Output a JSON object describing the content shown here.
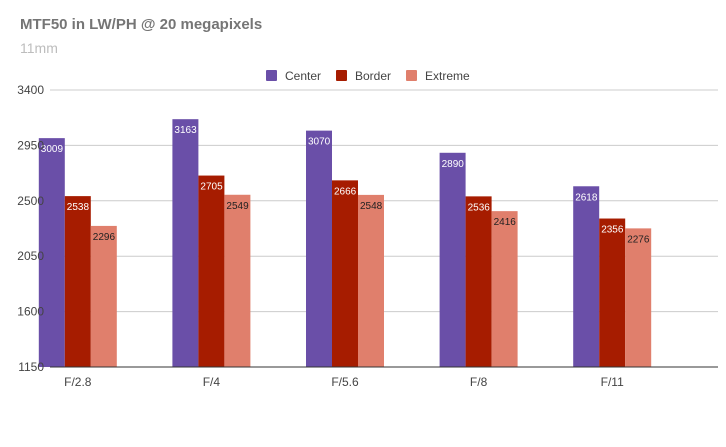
{
  "chart_data": {
    "type": "bar",
    "title": "MTF50 in LW/PH @ 20 megapixels",
    "subtitle": "11mm",
    "xlabel": "",
    "ylabel": "",
    "categories": [
      "F/2.8",
      "F/4",
      "F/5.6",
      "F/8",
      "F/11"
    ],
    "series": [
      {
        "name": "Center",
        "color": "#6a4fa8",
        "values": [
          3009,
          3163,
          3070,
          2890,
          2618
        ]
      },
      {
        "name": "Border",
        "color": "#a61c00",
        "values": [
          2538,
          2705,
          2666,
          2536,
          2356
        ]
      },
      {
        "name": "Extreme",
        "color": "#e07f6c",
        "values": [
          2296,
          2549,
          2548,
          2416,
          2276
        ]
      }
    ],
    "ylim": [
      1150,
      3400
    ],
    "yticks": [
      1150,
      1600,
      2050,
      2500,
      2950,
      3400
    ],
    "grid": true,
    "legend_position": "top-center"
  }
}
